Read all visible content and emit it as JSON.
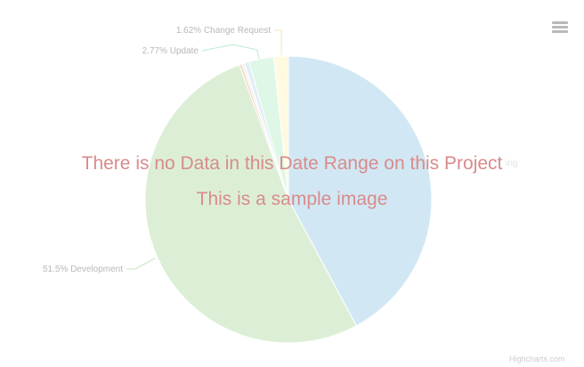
{
  "chart_data": {
    "type": "pie",
    "series": [
      {
        "name": "",
        "label": "",
        "value": 41.5,
        "color": "#d1e8f4"
      },
      {
        "name": "Development",
        "label": "51.5% Development",
        "value": 51.5,
        "color": "#dcefd6"
      },
      {
        "name": "",
        "label": "",
        "value": 0.3,
        "color": "#f6d8c5"
      },
      {
        "name": "",
        "label": "",
        "value": 0.3,
        "color": "#f3f3f3"
      },
      {
        "name": "",
        "label": "",
        "value": 0.5,
        "color": "#dfeef7"
      },
      {
        "name": "Update",
        "label": "2.77% Update",
        "value": 2.77,
        "color": "#dff7e6"
      },
      {
        "name": "Change Request",
        "label": "1.62% Change Request",
        "value": 1.62,
        "color": "#fffae0"
      }
    ],
    "faint_label_suffix": "ing"
  },
  "overlay": {
    "no_data": "There is no Data in this Date Range on this Project",
    "sample": "This is a sample image"
  },
  "credit": "Highcharts.com"
}
